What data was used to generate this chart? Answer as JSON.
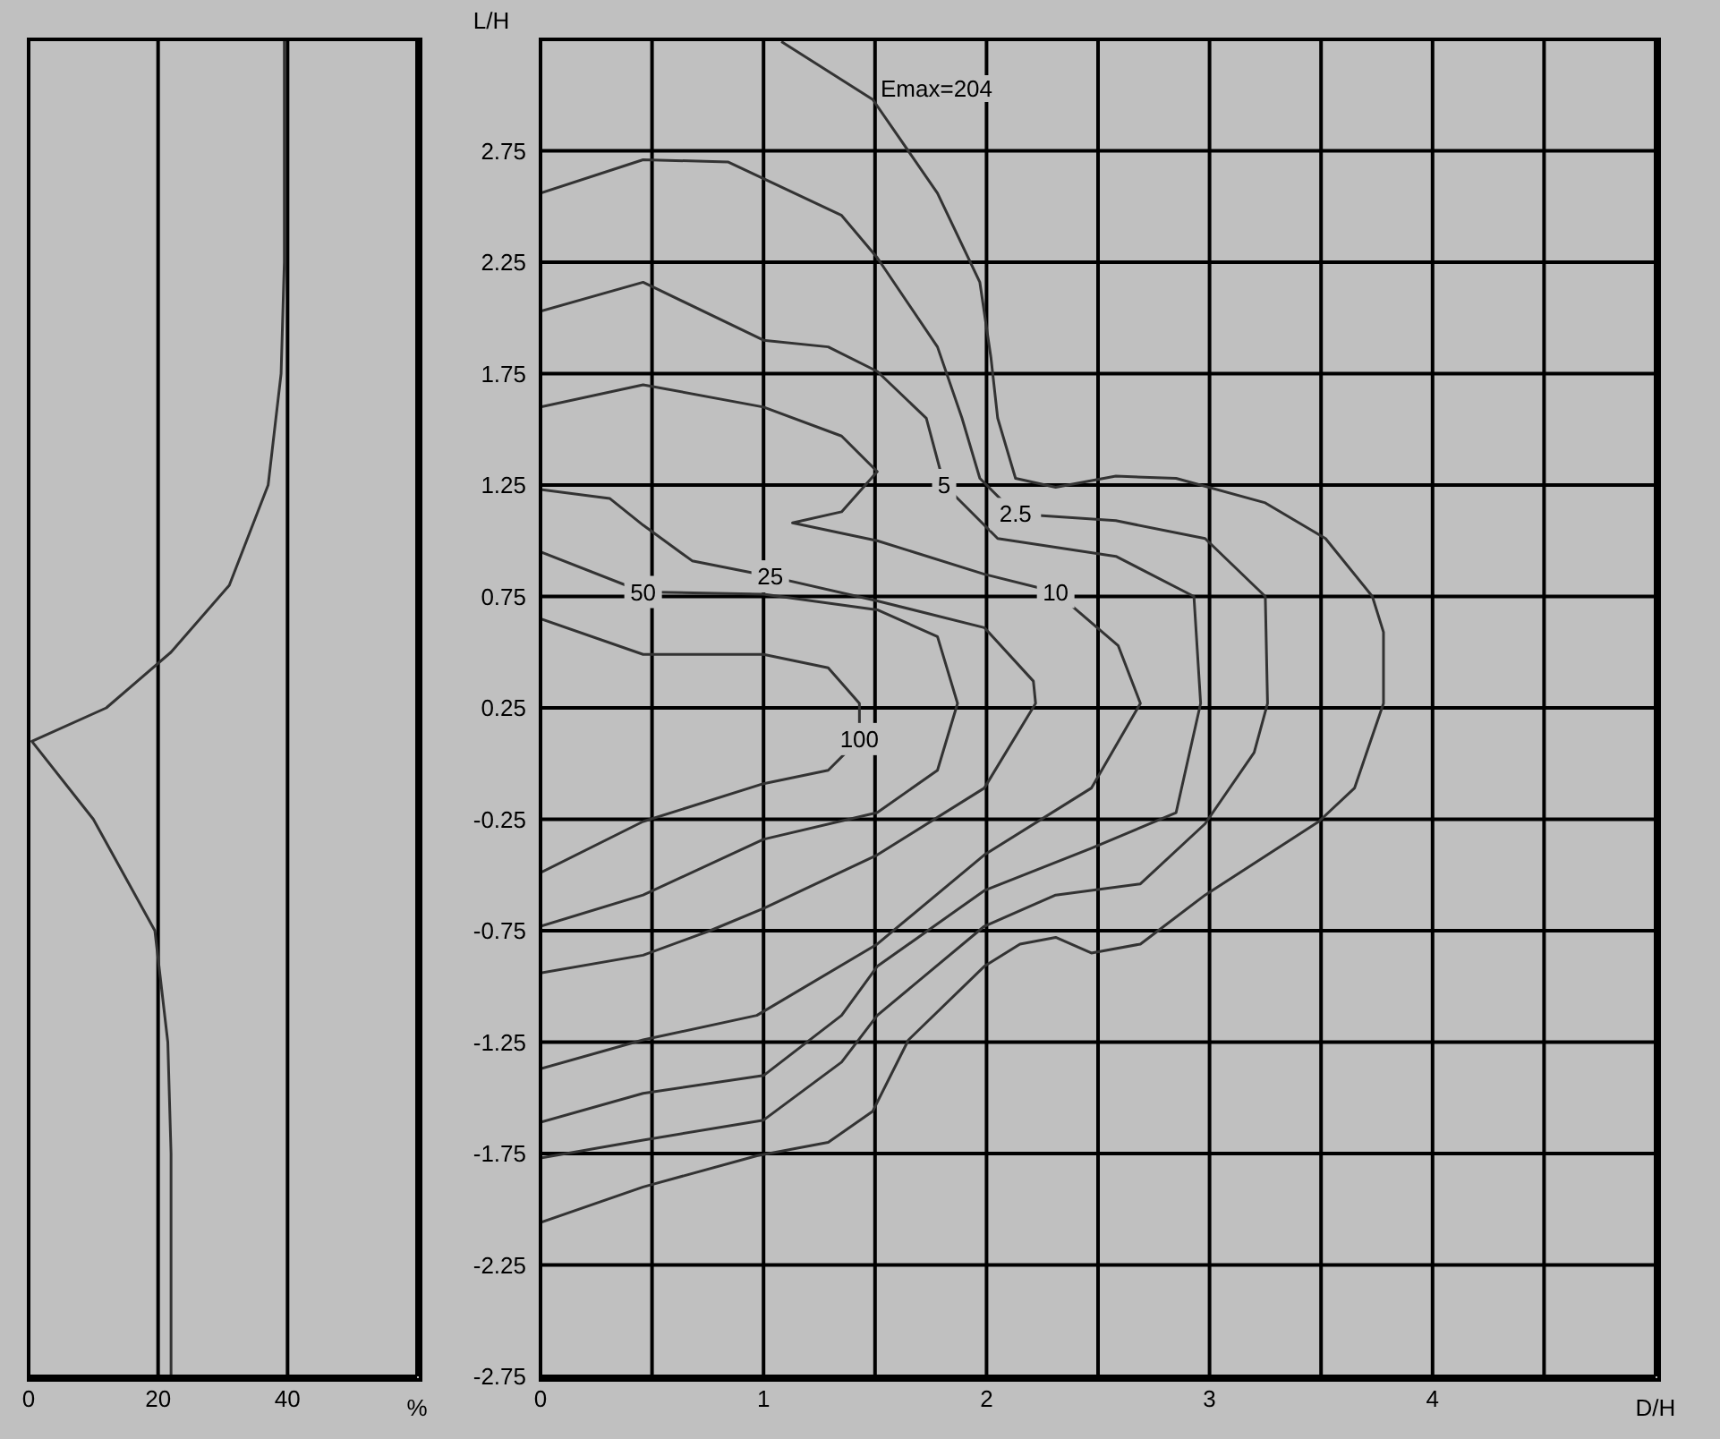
{
  "chart_data": [
    {
      "type": "line",
      "xlabel": "%",
      "x": [
        39.5,
        39.5,
        39,
        37,
        31,
        22,
        12,
        0.5,
        10,
        19.5,
        21.5,
        22,
        22
      ],
      "values": [
        3.25,
        2.25,
        1.75,
        1.25,
        0.8,
        0.5,
        0.25,
        0.1,
        -0.25,
        -0.75,
        -1.25,
        -1.75,
        -2.75
      ],
      "color": "#333333",
      "xlim": [
        0,
        60
      ],
      "xticks": [
        0,
        20,
        40
      ],
      "ylim": [
        -2.75,
        3.25
      ],
      "yticks": [
        -2.75,
        -2.25,
        -1.75,
        -1.25,
        -0.75,
        -0.25,
        0.25,
        0.75,
        1.25,
        1.75,
        2.25,
        2.75
      ],
      "tick_labels": "x",
      "grid": true
    },
    {
      "type": "line",
      "xlabel": "D/H",
      "ylabel": "L/H",
      "series": [
        {
          "name": "100",
          "color": "#333333",
          "x": [
            0,
            0.46,
            1.0,
            1.29,
            1.43,
            1.43,
            1.29,
            1.0,
            0.46,
            0
          ],
          "values": [
            0.65,
            0.49,
            0.49,
            0.43,
            0.27,
            0.11,
            -0.03,
            -0.09,
            -0.26,
            -0.49
          ]
        },
        {
          "name": "50",
          "color": "#333333",
          "x": [
            0,
            0.46,
            1.0,
            1.51,
            1.78,
            1.87,
            1.78,
            1.51,
            1.0,
            0.46,
            0
          ],
          "values": [
            0.95,
            0.77,
            0.76,
            0.69,
            0.57,
            0.27,
            -0.03,
            -0.22,
            -0.34,
            -0.59,
            -0.73
          ]
        },
        {
          "name": "25",
          "color": "#333333",
          "x": [
            0,
            0.31,
            0.46,
            0.68,
            1.03,
            1.51,
            1.99,
            2.21,
            2.22,
            1.99,
            1.51,
            1.0,
            0.76,
            0.46,
            0
          ],
          "values": [
            1.23,
            1.19,
            1.07,
            0.91,
            0.84,
            0.73,
            0.61,
            0.37,
            0.27,
            -0.11,
            -0.41,
            -0.65,
            -0.75,
            -0.86,
            -0.94
          ]
        },
        {
          "name": "10",
          "color": "#333333",
          "x": [
            0,
            0.46,
            1.0,
            1.35,
            1.51,
            1.35,
            1.13,
            1.51,
            1.99,
            2.31,
            2.59,
            2.69,
            2.47,
            1.99,
            1.51,
            0.97,
            0.46,
            0
          ],
          "values": [
            1.6,
            1.7,
            1.6,
            1.47,
            1.31,
            1.13,
            1.08,
            1.0,
            0.85,
            0.77,
            0.53,
            0.27,
            -0.11,
            -0.41,
            -0.81,
            -1.13,
            -1.24,
            -1.37
          ]
        },
        {
          "name": "5",
          "color": "#333333",
          "x": [
            0,
            0.46,
            1.0,
            1.29,
            1.51,
            1.73,
            1.81,
            2.05,
            2.58,
            2.93,
            2.96,
            2.85,
            2.47,
            1.99,
            1.51,
            1.35,
            1.0,
            0.46,
            0
          ],
          "values": [
            2.03,
            2.16,
            1.9,
            1.87,
            1.76,
            1.55,
            1.25,
            1.01,
            0.93,
            0.75,
            0.27,
            -0.22,
            -0.38,
            -0.57,
            -0.91,
            -1.13,
            -1.4,
            -1.48,
            -1.61
          ]
        },
        {
          "name": "2.5",
          "color": "#333333",
          "x": [
            0,
            0.46,
            0.84,
            1.35,
            1.51,
            1.78,
            1.89,
            1.97,
            2.13,
            2.58,
            2.98,
            3.25,
            3.26,
            3.2,
            2.98,
            2.69,
            2.31,
            1.99,
            1.51,
            1.35,
            1.0,
            0.46,
            0
          ],
          "values": [
            2.56,
            2.71,
            2.7,
            2.46,
            2.27,
            1.87,
            1.55,
            1.28,
            1.12,
            1.09,
            1.01,
            0.75,
            0.27,
            0.05,
            -0.27,
            -0.54,
            -0.59,
            -0.73,
            -1.13,
            -1.34,
            -1.6,
            -1.69,
            -1.77
          ]
        },
        {
          "color": "#333333",
          "x": [
            1.08,
            1.49,
            1.78,
            1.97,
            2.02,
            2.05,
            2.13,
            2.31,
            2.58,
            2.85,
            3.25,
            3.52,
            3.73,
            3.78,
            3.78,
            3.65,
            3.49,
            2.98,
            2.69,
            2.47,
            2.31,
            2.15,
            1.99,
            1.65,
            1.49,
            1.29,
            0.97,
            0.46,
            0
          ],
          "values": [
            3.24,
            2.98,
            2.56,
            2.16,
            1.82,
            1.55,
            1.28,
            1.24,
            1.29,
            1.28,
            1.17,
            1.01,
            0.75,
            0.59,
            0.27,
            -0.11,
            -0.26,
            -0.59,
            -0.81,
            -0.85,
            -0.78,
            -0.81,
            -0.91,
            -1.24,
            -1.56,
            -1.7,
            -1.76,
            -1.9,
            -2.06
          ]
        }
      ],
      "annotations": [
        "Emax=204"
      ],
      "xlim": [
        0,
        5
      ],
      "xticks": [
        0,
        {
          "value": 0.5,
          "label": null
        },
        1,
        {
          "value": 1.5,
          "label": null
        },
        2,
        {
          "value": 2.5,
          "label": null
        },
        3,
        {
          "value": 3.5,
          "label": null
        },
        4,
        {
          "value": 4.5,
          "label": null
        }
      ],
      "ylim": [
        -2.75,
        3.25
      ],
      "yticks": [
        -2.75,
        -2.25,
        -1.75,
        -1.25,
        -0.75,
        -0.25,
        0.25,
        0.75,
        1.25,
        1.75,
        2.25,
        2.75
      ],
      "grid": true
    }
  ]
}
